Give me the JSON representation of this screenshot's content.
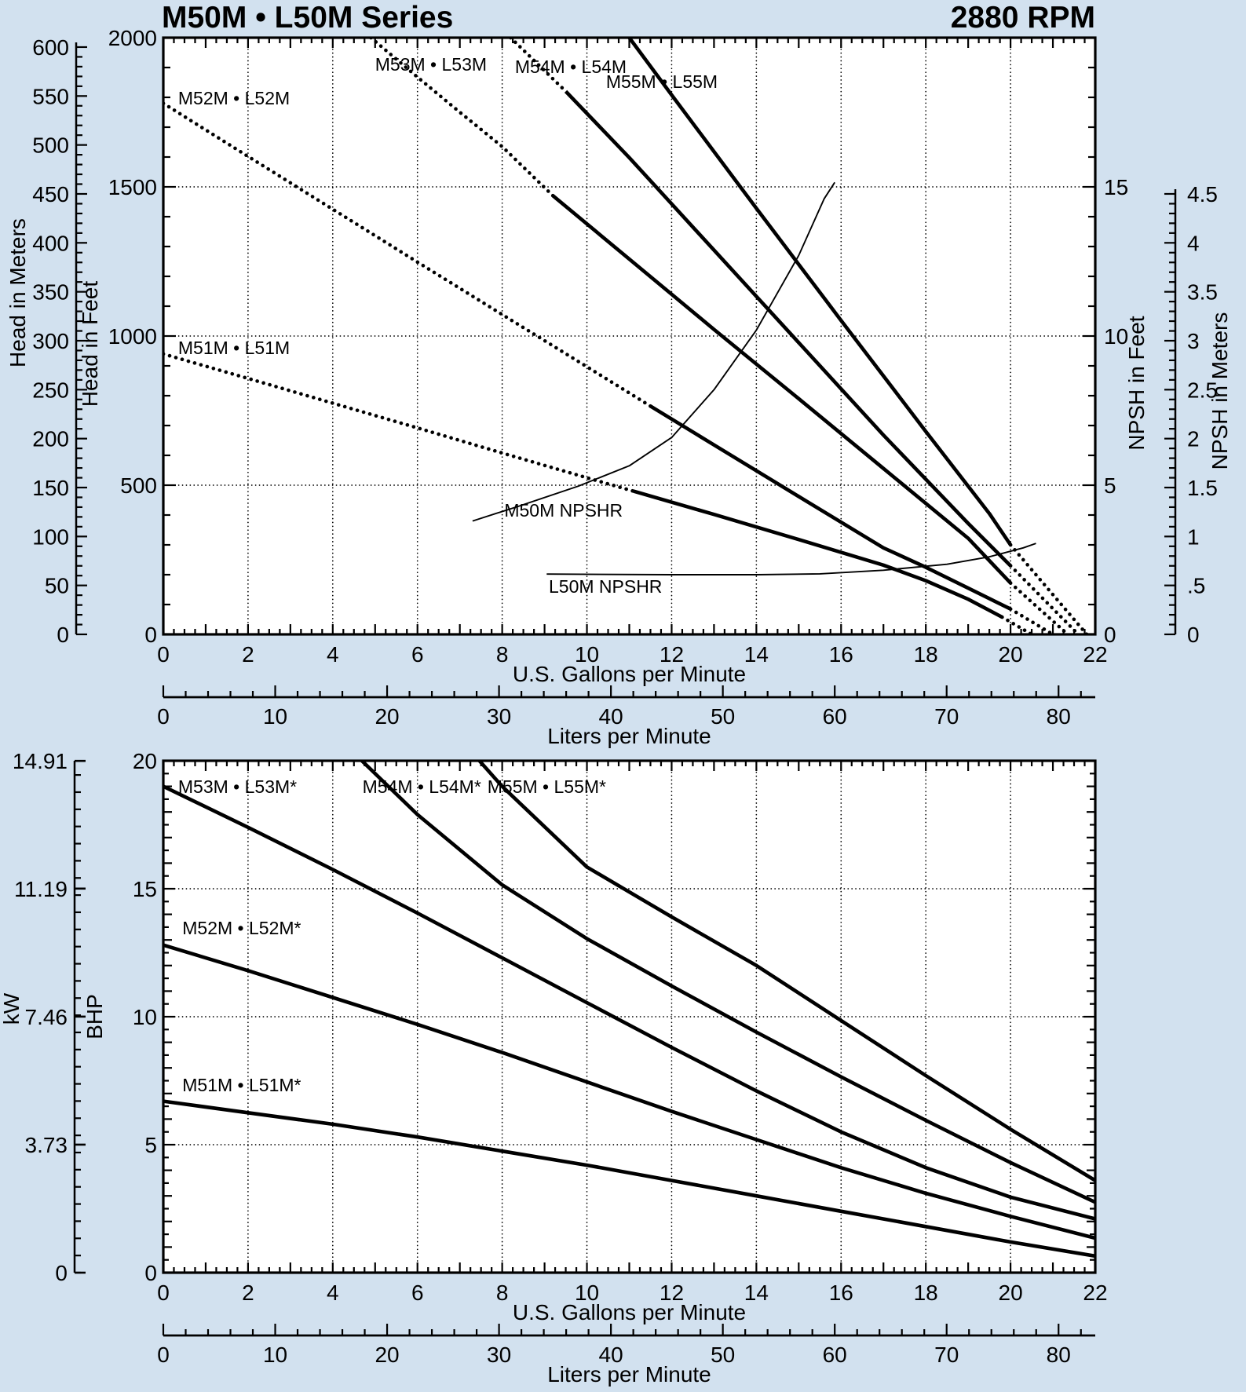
{
  "title": {
    "series": "M50M • L50M Series",
    "rpm": "2880 RPM"
  },
  "colors": {
    "background": "#d2e1ef",
    "plot": "#ffffff",
    "ink": "#000000"
  },
  "chart_data": [
    {
      "id": "head-chart",
      "type": "line",
      "x_axis": {
        "label": "U.S. Gallons per Minute",
        "min": 0,
        "max": 22,
        "tick_labels": [
          0,
          2,
          4,
          6,
          8,
          10,
          12,
          14,
          16,
          18,
          20,
          22
        ],
        "minor_step": 0.25,
        "major_step": 1,
        "grid_step": 2
      },
      "x_axis_secondary": {
        "label": "Liters per Minute",
        "min": 0,
        "max": 83.28,
        "tick_labels": [
          0,
          10,
          20,
          30,
          40,
          50,
          60,
          70,
          80
        ],
        "minor_step": 2,
        "major_step": 10
      },
      "y_axis_feet": {
        "label": "Head in Feet",
        "min": 0,
        "max": 2000,
        "tick_labels": [
          2000,
          1500,
          1000,
          500,
          0
        ],
        "minor_step": 100,
        "grid_step": 500
      },
      "y_axis_meters": {
        "label": "Head in Meters",
        "min": 0,
        "max": 600,
        "label_step": 50,
        "minor_step": 10
      },
      "y_axis_npsh_feet": {
        "label": "NPSH in Feet",
        "min": 0,
        "max": 20,
        "tick_labels": [
          15,
          10,
          5,
          0
        ],
        "minor_step": 1,
        "major_step": 5
      },
      "y_axis_npsh_meters": {
        "label": "NPSH in Meters",
        "min": 0,
        "max": 4.5,
        "label_step": 0.5,
        "minor_step": 0.1,
        "tick_labels": [
          "4.5",
          "4",
          "3.5",
          "3",
          "2.5",
          "2",
          "1.5",
          "1",
          ".5",
          "0"
        ]
      },
      "grid": {
        "style": "dotted"
      },
      "series": [
        {
          "name": "M51M • L51M",
          "unit": "ft",
          "segments": [
            {
              "style": "dotted",
              "points": [
                [
                  0,
                  940
                ],
                [
                  2,
                  858
                ],
                [
                  4,
                  775
                ],
                [
                  6,
                  692
                ],
                [
                  8,
                  608
                ],
                [
                  10,
                  525
                ],
                [
                  11.1,
                  480
                ]
              ]
            },
            {
              "style": "solid",
              "points": [
                [
                  11.1,
                  480
                ],
                [
                  13,
                  402
                ],
                [
                  15,
                  318
                ],
                [
                  17,
                  232
                ],
                [
                  18,
                  180
                ],
                [
                  19,
                  118
                ],
                [
                  19.8,
                  58
                ]
              ]
            },
            {
              "style": "dotted",
              "points": [
                [
                  19.8,
                  58
                ],
                [
                  20.5,
                  0
                ]
              ]
            }
          ]
        },
        {
          "name": "M52M • L52M",
          "unit": "ft",
          "segments": [
            {
              "style": "dotted",
              "points": [
                [
                  0,
                  1780
                ],
                [
                  2,
                  1602
                ],
                [
                  4,
                  1425
                ],
                [
                  6,
                  1248
                ],
                [
                  8,
                  1072
                ],
                [
                  10,
                  897
                ],
                [
                  11.5,
                  765
                ]
              ]
            },
            {
              "style": "solid",
              "points": [
                [
                  11.5,
                  765
                ],
                [
                  13,
                  635
                ],
                [
                  15,
                  462
                ],
                [
                  17,
                  290
                ],
                [
                  18,
                  225
                ],
                [
                  19,
                  155
                ],
                [
                  20,
                  85
                ]
              ]
            },
            {
              "style": "dotted",
              "points": [
                [
                  20,
                  85
                ],
                [
                  21,
                  0
                ]
              ]
            }
          ]
        },
        {
          "name": "M53M • L53M",
          "unit": "ft",
          "segments": [
            {
              "style": "dotted",
              "points": [
                [
                  4.9,
                  2000
                ],
                [
                  6,
                  1868
                ],
                [
                  7,
                  1750
                ],
                [
                  8,
                  1635
                ],
                [
                  9.2,
                  1470
                ]
              ]
            },
            {
              "style": "solid",
              "points": [
                [
                  9.2,
                  1470
                ],
                [
                  11,
                  1258
                ],
                [
                  13,
                  1022
                ],
                [
                  15,
                  790
                ],
                [
                  17,
                  556
                ],
                [
                  19,
                  322
                ],
                [
                  20,
                  172
                ]
              ]
            },
            {
              "style": "dotted",
              "points": [
                [
                  20,
                  172
                ],
                [
                  21.35,
                  0
                ]
              ]
            }
          ]
        },
        {
          "name": "M54M • L54M",
          "unit": "ft",
          "segments": [
            {
              "style": "dotted",
              "points": [
                [
                  8.2,
                  2000
                ],
                [
                  9.5,
                  1820
                ]
              ]
            },
            {
              "style": "solid",
              "points": [
                [
                  9.5,
                  1820
                ],
                [
                  11,
                  1598
                ],
                [
                  13,
                  1288
                ],
                [
                  15,
                  978
                ],
                [
                  17,
                  668
                ],
                [
                  19,
                  372
                ],
                [
                  20,
                  230
                ]
              ]
            },
            {
              "style": "dotted",
              "points": [
                [
                  20,
                  230
                ],
                [
                  21.6,
                  0
                ]
              ]
            }
          ]
        },
        {
          "name": "M55M • L55M",
          "unit": "ft",
          "segments": [
            {
              "style": "solid",
              "points": [
                [
                  11,
                  2000
                ],
                [
                  12,
                  1808
                ],
                [
                  14,
                  1428
                ],
                [
                  16,
                  1052
                ],
                [
                  18,
                  680
                ],
                [
                  19.5,
                  405
                ],
                [
                  20,
                  300
                ]
              ]
            },
            {
              "style": "dotted",
              "points": [
                [
                  20,
                  300
                ],
                [
                  21.8,
                  0
                ]
              ]
            }
          ]
        },
        {
          "name": "M50M NPSHR",
          "unit": "npsh-ft-x100",
          "segments": [
            {
              "style": "thin",
              "points": [
                [
                  7.3,
                  380
                ],
                [
                  8.4,
                  430
                ],
                [
                  9.8,
                  497
                ],
                [
                  11,
                  565
                ],
                [
                  12,
                  660
                ],
                [
                  13,
                  820
                ],
                [
                  14,
                  1020
                ],
                [
                  15,
                  1270
                ],
                [
                  15.6,
                  1460
                ],
                [
                  15.85,
                  1515
                ]
              ]
            }
          ]
        },
        {
          "name": "L50M NPSHR",
          "unit": "npsh-ft-x100",
          "segments": [
            {
              "style": "thin",
              "points": [
                [
                  9.05,
                  202
                ],
                [
                  12,
                  200
                ],
                [
                  14,
                  200
                ],
                [
                  15.5,
                  203
                ],
                [
                  17,
                  215
                ],
                [
                  18.5,
                  235
                ],
                [
                  19.5,
                  260
                ],
                [
                  20.3,
                  290
                ],
                [
                  20.6,
                  305
                ]
              ]
            }
          ]
        }
      ],
      "curve_labels": [
        {
          "text": "M52M • L52M",
          "g": 0.35,
          "v": 1776
        },
        {
          "text": "M51M • L51M",
          "g": 0.35,
          "v": 939
        },
        {
          "text": "M53M • L53M",
          "g": 5.0,
          "v": 1889
        },
        {
          "text": "M54M • L54M",
          "g": 8.3,
          "v": 1882
        },
        {
          "text": "M55M • L55M",
          "g": 10.45,
          "v": 1832
        },
        {
          "text": "M50M NPSHR",
          "g": 8.05,
          "v": 395
        },
        {
          "text": "L50M NPSHR",
          "g": 9.1,
          "v": 140
        }
      ]
    },
    {
      "id": "power-chart",
      "type": "line",
      "x_axis": {
        "label": "U.S. Gallons per Minute",
        "min": 0,
        "max": 22,
        "tick_labels": [
          0,
          2,
          4,
          6,
          8,
          10,
          12,
          14,
          16,
          18,
          20,
          22
        ],
        "minor_step": 0.25,
        "major_step": 1,
        "grid_step": 2
      },
      "x_axis_secondary": {
        "label": "Liters per Minute",
        "min": 0,
        "max": 83.28,
        "tick_labels": [
          0,
          10,
          20,
          30,
          40,
          50,
          60,
          70,
          80
        ],
        "minor_step": 2,
        "major_step": 10
      },
      "y_axis_bhp": {
        "label": "BHP",
        "min": 0,
        "max": 20,
        "tick_labels": [
          20,
          15,
          10,
          5,
          0
        ],
        "minor_step": 0.5,
        "grid_step": 5
      },
      "y_axis_kw": {
        "label": "kW",
        "min": 0,
        "max": 14.91,
        "tick_labels": [
          "14.91",
          "11.19",
          "7.46",
          "3.73",
          "0"
        ],
        "label_values": [
          14.91,
          11.19,
          7.46,
          3.73,
          0
        ],
        "minor_step": 0.5
      },
      "grid": {
        "style": "dotted"
      },
      "series": [
        {
          "name": "M51M • L51M*",
          "unit": "bhp",
          "segments": [
            {
              "style": "solid",
              "points": [
                [
                  0,
                  6.7
                ],
                [
                  2,
                  6.25
                ],
                [
                  4,
                  5.8
                ],
                [
                  6,
                  5.3
                ],
                [
                  8,
                  4.75
                ],
                [
                  10,
                  4.2
                ],
                [
                  12,
                  3.6
                ],
                [
                  14,
                  3.0
                ],
                [
                  16,
                  2.4
                ],
                [
                  18,
                  1.8
                ],
                [
                  20,
                  1.2
                ],
                [
                  22,
                  0.65
                ]
              ]
            }
          ]
        },
        {
          "name": "M52M • L52M*",
          "unit": "bhp",
          "segments": [
            {
              "style": "solid",
              "points": [
                [
                  0,
                  12.8
                ],
                [
                  2,
                  11.8
                ],
                [
                  4,
                  10.75
                ],
                [
                  6,
                  9.7
                ],
                [
                  8,
                  8.6
                ],
                [
                  10,
                  7.45
                ],
                [
                  12,
                  6.3
                ],
                [
                  14,
                  5.2
                ],
                [
                  16,
                  4.1
                ],
                [
                  18,
                  3.1
                ],
                [
                  20,
                  2.2
                ],
                [
                  22,
                  1.35
                ]
              ]
            }
          ]
        },
        {
          "name": "M53M • L53M*",
          "unit": "bhp",
          "segments": [
            {
              "style": "solid",
              "points": [
                [
                  0,
                  19.0
                ],
                [
                  2,
                  17.4
                ],
                [
                  4,
                  15.75
                ],
                [
                  6,
                  14.05
                ],
                [
                  8,
                  12.3
                ],
                [
                  10,
                  10.55
                ],
                [
                  12,
                  8.8
                ],
                [
                  14,
                  7.1
                ],
                [
                  16,
                  5.5
                ],
                [
                  18,
                  4.1
                ],
                [
                  20,
                  2.95
                ],
                [
                  22,
                  2.1
                ]
              ]
            }
          ]
        },
        {
          "name": "M54M • L54M*",
          "unit": "bhp",
          "segments": [
            {
              "style": "solid",
              "points": [
                [
                  4.5,
                  20.3
                ],
                [
                  6,
                  17.9
                ],
                [
                  8,
                  15.15
                ],
                [
                  10,
                  13.05
                ],
                [
                  12,
                  11.2
                ],
                [
                  14,
                  9.4
                ],
                [
                  16,
                  7.65
                ],
                [
                  18,
                  5.95
                ],
                [
                  20,
                  4.3
                ],
                [
                  22,
                  2.75
                ]
              ]
            }
          ]
        },
        {
          "name": "M55M • L55M*",
          "unit": "bhp",
          "segments": [
            {
              "style": "solid",
              "points": [
                [
                  7.3,
                  20.3
                ],
                [
                  8,
                  19.0
                ],
                [
                  10,
                  15.85
                ],
                [
                  12,
                  13.9
                ],
                [
                  14,
                  12.0
                ],
                [
                  16,
                  9.85
                ],
                [
                  18,
                  7.7
                ],
                [
                  20,
                  5.6
                ],
                [
                  22,
                  3.6
                ]
              ]
            }
          ]
        }
      ],
      "curve_labels": [
        {
          "text": "M53M • L53M*",
          "g": 0.35,
          "v": 18.74
        },
        {
          "text": "M54M • L54M*",
          "g": 4.7,
          "v": 18.74
        },
        {
          "text": "M55M • L55M*",
          "g": 7.65,
          "v": 18.74
        },
        {
          "text": "M52M • L52M*",
          "g": 0.45,
          "v": 13.22
        },
        {
          "text": "M51M • L51M*",
          "g": 0.45,
          "v": 7.09
        }
      ]
    }
  ]
}
